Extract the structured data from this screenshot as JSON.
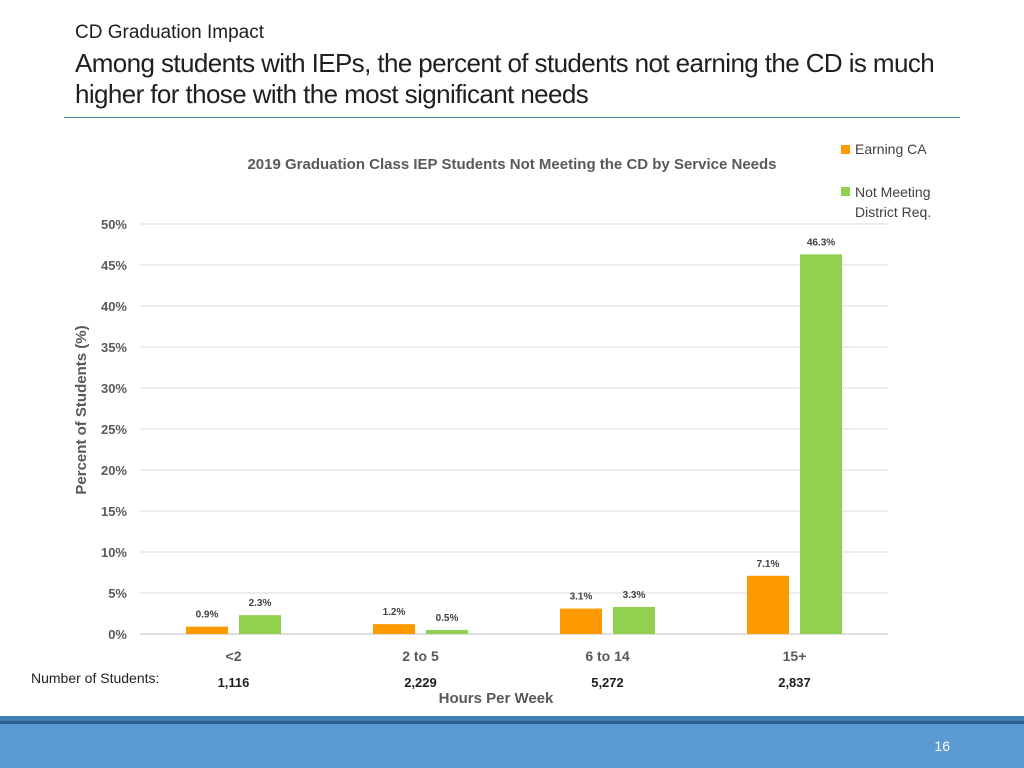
{
  "slide": {
    "subtitle": "CD Graduation Impact",
    "title": "Among students with IEPs, the percent of students not earning the CD is much higher for those with the most significant needs",
    "page_number": "16"
  },
  "students": {
    "label": "Number of Students:",
    "counts": [
      "1,116",
      "2,229",
      "5,272",
      "2,837"
    ]
  },
  "colors": {
    "earning": "#ff9900",
    "not_meeting": "#92d050",
    "grid": "#d9d9d9",
    "title_text": "#595959"
  },
  "chart_data": {
    "type": "bar",
    "title": "2019 Graduation Class IEP Students Not Meeting the CD by Service Needs",
    "xlabel": "Hours Per Week",
    "ylabel": "Percent of Students (%)",
    "categories": [
      "<2",
      "2 to 5",
      "6 to 14",
      "15+"
    ],
    "series": [
      {
        "name": "Earning CA",
        "values": [
          0.9,
          1.2,
          3.1,
          7.1
        ],
        "labels": [
          "0.9%",
          "1.2%",
          "3.1%",
          "7.1%"
        ]
      },
      {
        "name": "Not Meeting District Req.",
        "values": [
          2.3,
          0.5,
          3.3,
          46.3
        ],
        "labels": [
          "2.3%",
          "0.5%",
          "3.3%",
          "46.3%"
        ]
      }
    ],
    "ylim": [
      0,
      50
    ],
    "yticks": [
      "0%",
      "5%",
      "10%",
      "15%",
      "20%",
      "25%",
      "30%",
      "35%",
      "40%",
      "45%",
      "50%"
    ],
    "grid": true,
    "legend": "top-right"
  }
}
